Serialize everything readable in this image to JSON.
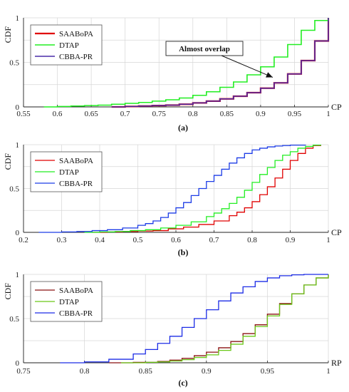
{
  "chart_data": [
    {
      "type": "line",
      "caption": "(a)",
      "ylabel": "CDF",
      "xlabel": "CP",
      "xlim": [
        0.55,
        1.0
      ],
      "ylim": [
        0,
        1
      ],
      "xticks": [
        "0.55",
        "0.6",
        "0.65",
        "0.7",
        "0.75",
        "0.8",
        "0.85",
        "0.9",
        "0.95",
        "1"
      ],
      "yticks": [
        "0",
        "0.5",
        "1"
      ],
      "grid": true,
      "legend_position": "top-left",
      "annotation": {
        "text": "Almost overlap",
        "x": 0.92,
        "y": 0.3
      },
      "series": [
        {
          "name": "SAABoPA",
          "color": "#e00000",
          "width": 2.2,
          "x": [
            0.68,
            0.7,
            0.72,
            0.74,
            0.76,
            0.78,
            0.8,
            0.82,
            0.84,
            0.86,
            0.88,
            0.9,
            0.92,
            0.94,
            0.96,
            0.98,
            1.0
          ],
          "y": [
            0.0,
            0.005,
            0.01,
            0.015,
            0.02,
            0.03,
            0.045,
            0.065,
            0.09,
            0.12,
            0.16,
            0.21,
            0.27,
            0.37,
            0.52,
            0.74,
            1.0
          ]
        },
        {
          "name": "DTAP",
          "color": "#22ee22",
          "width": 1.6,
          "x": [
            0.58,
            0.6,
            0.62,
            0.64,
            0.66,
            0.68,
            0.7,
            0.72,
            0.74,
            0.76,
            0.78,
            0.8,
            0.82,
            0.84,
            0.86,
            0.88,
            0.9,
            0.92,
            0.94,
            0.96,
            0.98,
            1.0
          ],
          "y": [
            0.0,
            0.005,
            0.01,
            0.015,
            0.02,
            0.03,
            0.04,
            0.05,
            0.065,
            0.08,
            0.1,
            0.13,
            0.17,
            0.22,
            0.28,
            0.36,
            0.45,
            0.56,
            0.7,
            0.86,
            0.97,
            1.0
          ]
        },
        {
          "name": "CBBA-PR",
          "color": "#4a2ca8",
          "width": 1.6,
          "x": [
            0.68,
            0.7,
            0.72,
            0.74,
            0.76,
            0.78,
            0.8,
            0.82,
            0.84,
            0.86,
            0.88,
            0.9,
            0.92,
            0.94,
            0.96,
            0.98,
            1.0
          ],
          "y": [
            0.0,
            0.005,
            0.01,
            0.015,
            0.02,
            0.03,
            0.045,
            0.065,
            0.09,
            0.12,
            0.16,
            0.21,
            0.27,
            0.37,
            0.52,
            0.74,
            1.0
          ]
        }
      ]
    },
    {
      "type": "line",
      "caption": "(b)",
      "ylabel": "CDF",
      "xlabel": "CP",
      "xlim": [
        0.2,
        1.0
      ],
      "ylim": [
        0,
        1
      ],
      "xticks": [
        "0.2",
        "0.3",
        "0.4",
        "0.5",
        "0.6",
        "0.7",
        "0.8",
        "0.9",
        "1"
      ],
      "yticks": [
        "0",
        "0.5",
        "1"
      ],
      "grid": true,
      "legend_position": "top-left",
      "series": [
        {
          "name": "SAABoPA",
          "color": "#e00000",
          "width": 1.3,
          "x": [
            0.38,
            0.42,
            0.46,
            0.5,
            0.54,
            0.58,
            0.62,
            0.66,
            0.7,
            0.74,
            0.76,
            0.78,
            0.8,
            0.82,
            0.84,
            0.86,
            0.88,
            0.9,
            0.92,
            0.94,
            0.96,
            0.98
          ],
          "y": [
            0.0,
            0.005,
            0.01,
            0.015,
            0.02,
            0.04,
            0.06,
            0.09,
            0.13,
            0.19,
            0.23,
            0.28,
            0.35,
            0.43,
            0.52,
            0.62,
            0.72,
            0.82,
            0.9,
            0.96,
            0.99,
            1.0
          ]
        },
        {
          "name": "DTAP",
          "color": "#22ee22",
          "width": 1.3,
          "x": [
            0.36,
            0.4,
            0.44,
            0.48,
            0.52,
            0.56,
            0.6,
            0.64,
            0.68,
            0.7,
            0.72,
            0.74,
            0.76,
            0.78,
            0.8,
            0.82,
            0.84,
            0.86,
            0.88,
            0.9,
            0.92,
            0.94,
            0.96,
            0.98
          ],
          "y": [
            0.0,
            0.005,
            0.01,
            0.02,
            0.03,
            0.05,
            0.08,
            0.12,
            0.18,
            0.22,
            0.27,
            0.33,
            0.4,
            0.48,
            0.57,
            0.66,
            0.74,
            0.82,
            0.88,
            0.92,
            0.96,
            0.98,
            0.995,
            1.0
          ]
        },
        {
          "name": "CBBA-PR",
          "color": "#1c3ce6",
          "width": 1.3,
          "x": [
            0.24,
            0.3,
            0.34,
            0.38,
            0.42,
            0.46,
            0.5,
            0.52,
            0.54,
            0.56,
            0.58,
            0.6,
            0.62,
            0.64,
            0.66,
            0.68,
            0.7,
            0.72,
            0.74,
            0.76,
            0.78,
            0.8,
            0.82,
            0.84,
            0.86,
            0.88,
            0.9,
            0.94
          ],
          "y": [
            0.0,
            0.005,
            0.01,
            0.02,
            0.03,
            0.05,
            0.08,
            0.1,
            0.13,
            0.17,
            0.22,
            0.28,
            0.34,
            0.42,
            0.5,
            0.58,
            0.65,
            0.72,
            0.79,
            0.85,
            0.9,
            0.94,
            0.96,
            0.975,
            0.985,
            0.99,
            0.995,
            1.0
          ]
        }
      ]
    },
    {
      "type": "line",
      "caption": "(c)",
      "ylabel": "CDF",
      "xlabel": "RP",
      "xlim": [
        0.75,
        1.0
      ],
      "ylim": [
        0,
        1
      ],
      "xticks": [
        "0.75",
        "0.8",
        "0.85",
        "0.9",
        "0.95",
        "1"
      ],
      "yticks": [
        "0",
        "0.5",
        "1"
      ],
      "grid": true,
      "legend_position": "top-left",
      "series": [
        {
          "name": "SAABoPA",
          "color": "#8b1010",
          "width": 1.3,
          "x": [
            0.82,
            0.84,
            0.86,
            0.87,
            0.88,
            0.89,
            0.9,
            0.91,
            0.92,
            0.93,
            0.94,
            0.95,
            0.96,
            0.97,
            0.98,
            0.99,
            1.0
          ],
          "y": [
            0.0,
            0.005,
            0.015,
            0.03,
            0.05,
            0.08,
            0.12,
            0.17,
            0.24,
            0.33,
            0.43,
            0.55,
            0.67,
            0.78,
            0.88,
            0.96,
            1.0
          ]
        },
        {
          "name": "DTAP",
          "color": "#6ac818",
          "width": 1.3,
          "x": [
            0.83,
            0.85,
            0.86,
            0.87,
            0.88,
            0.89,
            0.9,
            0.91,
            0.92,
            0.93,
            0.94,
            0.95,
            0.96,
            0.97,
            0.98,
            0.99,
            1.0
          ],
          "y": [
            0.0,
            0.005,
            0.01,
            0.02,
            0.035,
            0.06,
            0.09,
            0.14,
            0.21,
            0.3,
            0.41,
            0.53,
            0.66,
            0.78,
            0.88,
            0.96,
            1.0
          ]
        },
        {
          "name": "CBBA-PR",
          "color": "#1c2ce6",
          "width": 1.3,
          "x": [
            0.78,
            0.8,
            0.82,
            0.84,
            0.85,
            0.86,
            0.87,
            0.88,
            0.89,
            0.9,
            0.91,
            0.92,
            0.93,
            0.94,
            0.95,
            0.96,
            0.97,
            0.98,
            1.0
          ],
          "y": [
            0.0,
            0.01,
            0.04,
            0.1,
            0.15,
            0.22,
            0.3,
            0.4,
            0.5,
            0.6,
            0.7,
            0.79,
            0.86,
            0.92,
            0.96,
            0.985,
            0.995,
            1.0,
            1.0
          ]
        }
      ]
    }
  ]
}
